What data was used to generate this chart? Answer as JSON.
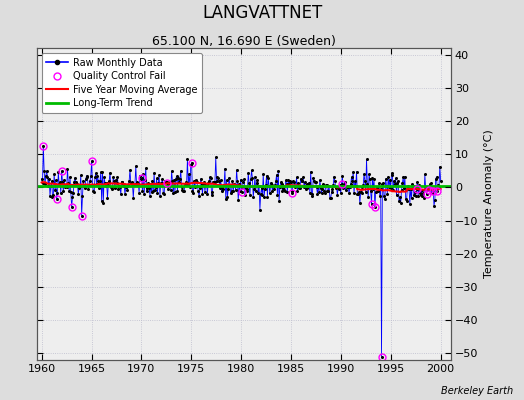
{
  "title": "LANGVATTNET",
  "subtitle": "65.100 N, 16.690 E (Sweden)",
  "ylabel": "Temperature Anomaly (°C)",
  "credit": "Berkeley Earth",
  "xlim": [
    1959.5,
    2001.0
  ],
  "ylim": [
    -52,
    42
  ],
  "yticks": [
    -50,
    -40,
    -30,
    -20,
    -10,
    0,
    10,
    20,
    30,
    40
  ],
  "xticks": [
    1960,
    1965,
    1970,
    1975,
    1980,
    1985,
    1990,
    1995,
    2000
  ],
  "raw_color": "#0000ff",
  "ma_color": "#ff0000",
  "trend_color": "#00bb00",
  "qc_color": "#ff00ff",
  "bg_color": "#dddddd",
  "plot_bg_color": "#eeeeee",
  "grid_color": "#bbbbcc",
  "seed": 42,
  "n_months": 480,
  "start_year": 1960.0,
  "long_term_trend_value": 0.3,
  "spike_month_qc": 2,
  "spike_value_qc": 12.5,
  "big_spike_month": 408,
  "big_spike_value": -51.0,
  "title_fontsize": 12,
  "subtitle_fontsize": 9,
  "tick_labelsize": 8,
  "ylabel_fontsize": 8,
  "legend_fontsize": 7,
  "credit_fontsize": 7
}
